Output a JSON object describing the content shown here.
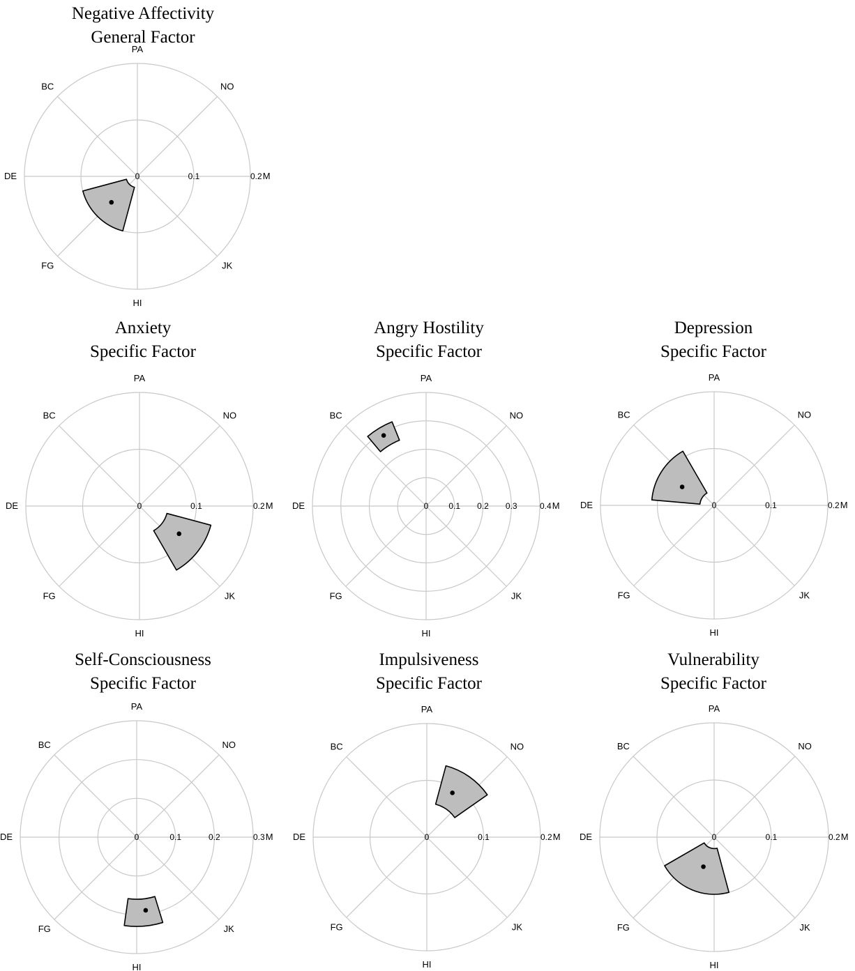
{
  "chart_data": [
    {
      "type": "polar",
      "title": [
        "Negative Affectivity",
        "General Factor"
      ],
      "directions": [
        "PA",
        "NO",
        "M",
        "JK",
        "HI",
        "FG",
        "DE",
        "BC"
      ],
      "rticks": [
        0,
        0.1,
        0.2
      ],
      "rmax": 0.2,
      "sector": {
        "center_angle_deg": 225,
        "center_radius": 0.065,
        "angle_min_deg": 195,
        "angle_max_deg": 255,
        "r_inner": 0.02,
        "r_outer": 0.1
      }
    },
    {
      "type": "polar",
      "title": [
        "Anxiety",
        "Specific Factor"
      ],
      "directions": [
        "PA",
        "NO",
        "M",
        "JK",
        "HI",
        "FG",
        "DE",
        "BC"
      ],
      "rticks": [
        0,
        0.1,
        0.2
      ],
      "rmax": 0.2,
      "sector": {
        "center_angle_deg": 125,
        "center_radius": 0.085,
        "angle_min_deg": 105,
        "angle_max_deg": 150,
        "r_inner": 0.05,
        "r_outer": 0.13
      }
    },
    {
      "type": "polar",
      "title": [
        "Angry Hostility",
        "Specific Factor"
      ],
      "directions": [
        "PA",
        "NO",
        "M",
        "JK",
        "HI",
        "FG",
        "DE",
        "BC"
      ],
      "rticks": [
        0,
        0.1,
        0.2,
        0.3,
        0.4
      ],
      "rmax": 0.4,
      "sector": {
        "center_angle_deg": 329,
        "center_radius": 0.29,
        "angle_min_deg": 320,
        "angle_max_deg": 338,
        "r_inner": 0.25,
        "r_outer": 0.32
      }
    },
    {
      "type": "polar",
      "title": [
        "Depression",
        "Specific Factor"
      ],
      "directions": [
        "PA",
        "NO",
        "M",
        "JK",
        "HI",
        "FG",
        "DE",
        "BC"
      ],
      "rticks": [
        0,
        0.1,
        0.2
      ],
      "rmax": 0.2,
      "sector": {
        "center_angle_deg": 300,
        "center_radius": 0.065,
        "angle_min_deg": 275,
        "angle_max_deg": 330,
        "r_inner": 0.025,
        "r_outer": 0.11
      }
    },
    {
      "type": "polar",
      "title": [
        "Self-Consciousness",
        "Specific Factor"
      ],
      "directions": [
        "PA",
        "NO",
        "M",
        "JK",
        "HI",
        "FG",
        "DE",
        "BC"
      ],
      "rticks": [
        0,
        0.1,
        0.2,
        0.3
      ],
      "rmax": 0.3,
      "sector": {
        "center_angle_deg": 173,
        "center_radius": 0.19,
        "angle_min_deg": 163,
        "angle_max_deg": 188,
        "r_inner": 0.16,
        "r_outer": 0.23
      }
    },
    {
      "type": "polar",
      "title": [
        "Impulsiveness",
        "Specific Factor"
      ],
      "directions": [
        "PA",
        "NO",
        "M",
        "JK",
        "HI",
        "FG",
        "DE",
        "BC"
      ],
      "rticks": [
        0,
        0.1,
        0.2
      ],
      "rmax": 0.2,
      "sector": {
        "center_angle_deg": 30,
        "center_radius": 0.09,
        "angle_min_deg": 15,
        "angle_max_deg": 55,
        "r_inner": 0.06,
        "r_outer": 0.13
      }
    },
    {
      "type": "polar",
      "title": [
        "Vulnerability",
        "Specific Factor"
      ],
      "directions": [
        "PA",
        "NO",
        "M",
        "JK",
        "HI",
        "FG",
        "DE",
        "BC"
      ],
      "rticks": [
        0,
        0.1,
        0.2
      ],
      "rmax": 0.2,
      "sector": {
        "center_angle_deg": 200,
        "center_radius": 0.055,
        "angle_min_deg": 165,
        "angle_max_deg": 240,
        "r_inner": 0.02,
        "r_outer": 0.1
      }
    }
  ]
}
